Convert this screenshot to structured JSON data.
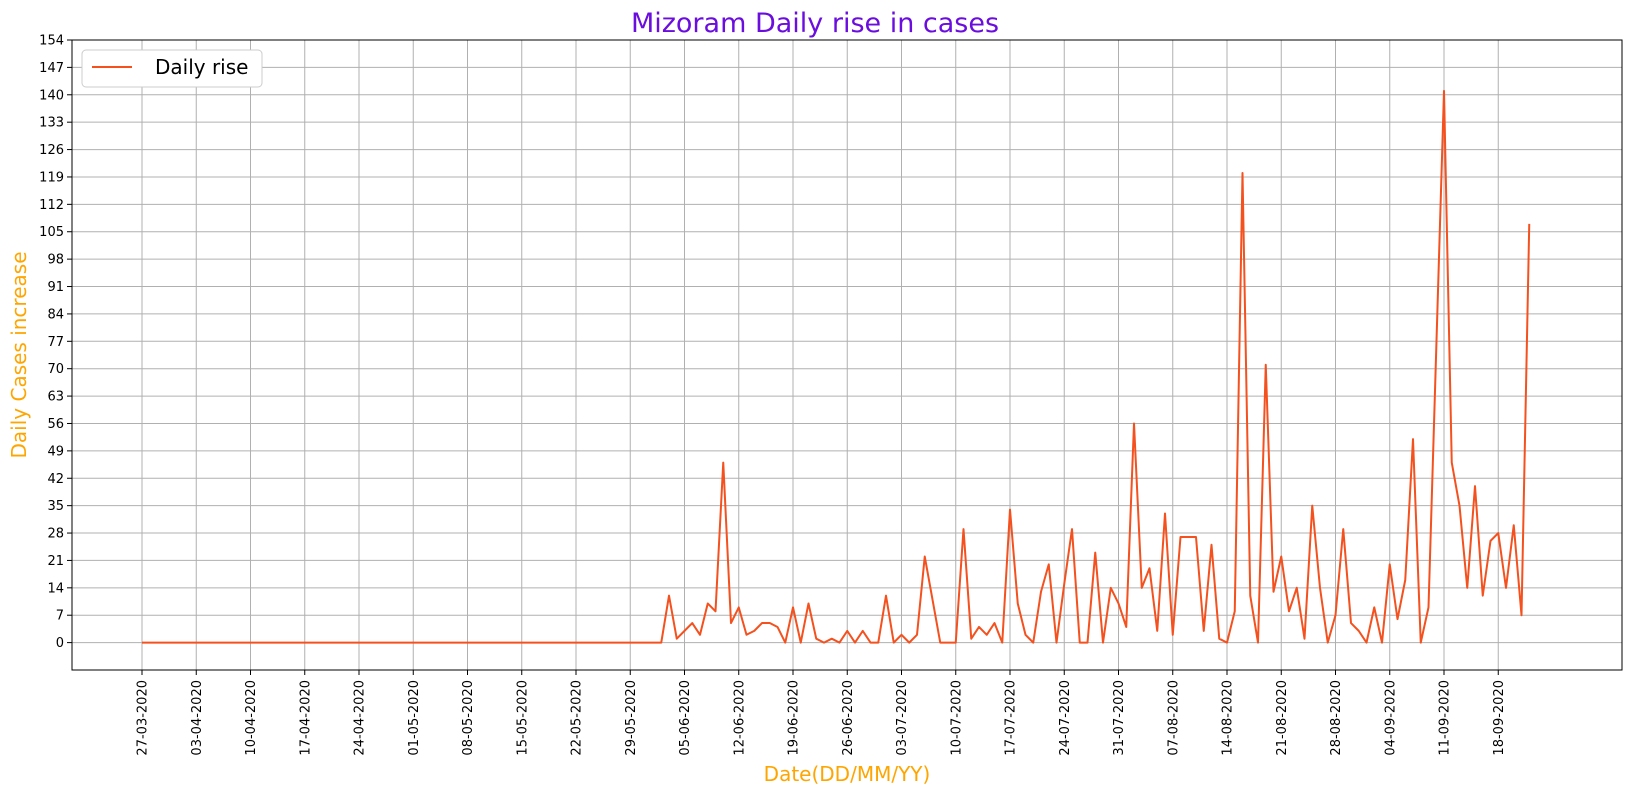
{
  "chart_data": {
    "type": "line",
    "title": "Mizoram Daily rise in cases",
    "xlabel": "Date(DD/MM/YY)",
    "ylabel": "Daily Cases increase",
    "start_date": "27-03-2020",
    "x_ticks": [
      "27-03-2020",
      "03-04-2020",
      "10-04-2020",
      "17-04-2020",
      "24-04-2020",
      "01-05-2020",
      "08-05-2020",
      "15-05-2020",
      "22-05-2020",
      "29-05-2020",
      "05-06-2020",
      "12-06-2020",
      "19-06-2020",
      "26-06-2020",
      "03-07-2020",
      "10-07-2020",
      "17-07-2020",
      "24-07-2020",
      "31-07-2020",
      "07-08-2020",
      "14-08-2020",
      "21-08-2020",
      "28-08-2020",
      "04-09-2020",
      "11-09-2020",
      "18-09-2020"
    ],
    "y_ticks": [
      0,
      7,
      14,
      21,
      28,
      35,
      42,
      49,
      56,
      63,
      70,
      77,
      84,
      91,
      98,
      105,
      112,
      119,
      126,
      133,
      140,
      147,
      154
    ],
    "ylim": [
      -7,
      154
    ],
    "grid": true,
    "legend_position": "top-left",
    "colors": {
      "title": "#6a0dde",
      "axis_label": "#ffa500",
      "series": "#f4511e",
      "grid": "#b0b0b0"
    },
    "series": [
      {
        "name": "Daily rise",
        "values": [
          0,
          0,
          0,
          0,
          0,
          0,
          0,
          0,
          0,
          0,
          0,
          0,
          0,
          0,
          0,
          0,
          0,
          0,
          0,
          0,
          0,
          0,
          0,
          0,
          0,
          0,
          0,
          0,
          0,
          0,
          0,
          0,
          0,
          0,
          0,
          0,
          0,
          0,
          0,
          0,
          0,
          0,
          0,
          0,
          0,
          0,
          0,
          0,
          0,
          0,
          0,
          0,
          0,
          0,
          0,
          0,
          0,
          0,
          0,
          0,
          0,
          0,
          0,
          0,
          0,
          0,
          0,
          0,
          12,
          1,
          3,
          5,
          2,
          10,
          8,
          46,
          5,
          9,
          2,
          3,
          5,
          5,
          4,
          0,
          9,
          0,
          10,
          1,
          0,
          1,
          0,
          3,
          0,
          3,
          0,
          0,
          12,
          0,
          2,
          0,
          2,
          22,
          11,
          0,
          0,
          0,
          29,
          1,
          4,
          2,
          5,
          0,
          34,
          10,
          2,
          0,
          13,
          20,
          0,
          15,
          29,
          0,
          0,
          23,
          0,
          14,
          10,
          4,
          56,
          14,
          19,
          3,
          33,
          2,
          27,
          27,
          27,
          3,
          25,
          1,
          0,
          8,
          120,
          12,
          0,
          71,
          13,
          22,
          8,
          14,
          1,
          35,
          14,
          0,
          7,
          29,
          5,
          3,
          0,
          9,
          0,
          20,
          6,
          16,
          52,
          0,
          9,
          75,
          141,
          46,
          35,
          14,
          40,
          12,
          26,
          28,
          14,
          30,
          7,
          107
        ]
      }
    ]
  }
}
